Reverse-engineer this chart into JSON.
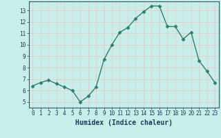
{
  "x": [
    0,
    1,
    2,
    3,
    4,
    5,
    6,
    7,
    8,
    9,
    10,
    11,
    12,
    13,
    14,
    15,
    16,
    17,
    18,
    19,
    20,
    21,
    22,
    23
  ],
  "y": [
    6.4,
    6.7,
    6.9,
    6.6,
    6.3,
    6.0,
    5.0,
    5.5,
    6.3,
    8.7,
    10.0,
    11.1,
    11.5,
    12.3,
    12.9,
    13.4,
    13.4,
    11.6,
    11.6,
    10.5,
    11.1,
    8.6,
    7.7,
    6.7
  ],
  "line_color": "#2e7d6e",
  "marker": "D",
  "marker_size": 2.5,
  "bg_color": "#c8eeea",
  "grid_color": "#e8c8c8",
  "xlabel": "Humidex (Indice chaleur)",
  "xlim": [
    -0.5,
    23.5
  ],
  "ylim": [
    4.5,
    13.8
  ],
  "yticks": [
    5,
    6,
    7,
    8,
    9,
    10,
    11,
    12,
    13
  ],
  "xticks": [
    0,
    1,
    2,
    3,
    4,
    5,
    6,
    7,
    8,
    9,
    10,
    11,
    12,
    13,
    14,
    15,
    16,
    17,
    18,
    19,
    20,
    21,
    22,
    23
  ],
  "xtick_labels": [
    "0",
    "1",
    "2",
    "3",
    "4",
    "5",
    "6",
    "7",
    "8",
    "9",
    "10",
    "11",
    "12",
    "13",
    "14",
    "15",
    "16",
    "17",
    "18",
    "19",
    "20",
    "21",
    "22",
    "23"
  ],
  "tick_fontsize": 5.5,
  "xlabel_fontsize": 7.0,
  "line_width": 1.0,
  "spine_color": "#2e5a6b",
  "tick_color": "#2e5a6b",
  "label_color": "#1a3a5c"
}
